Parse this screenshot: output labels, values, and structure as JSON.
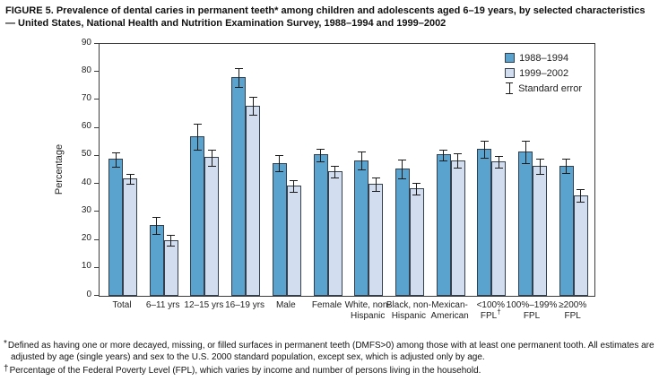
{
  "figure": {
    "title": "FIGURE 5. Prevalence of dental caries in permanent teeth* among children and adolescents aged 6–19 years, by selected characteristics — United States, National Health and Nutrition Examination Survey, 1988–1994 and 1999–2002"
  },
  "chart_data": {
    "type": "bar",
    "title": "",
    "xlabel": "",
    "ylabel": "Percentage",
    "ylim": [
      0,
      90
    ],
    "ytick_step": 10,
    "grid": false,
    "legend_position": "top-right-inside",
    "legend_error_label": "Standard error",
    "categories": [
      [
        "Total"
      ],
      [
        "6–11 yrs"
      ],
      [
        "12–15 yrs"
      ],
      [
        "16–19 yrs"
      ],
      [
        "Male"
      ],
      [
        "Female"
      ],
      [
        "White, non-",
        "Hispanic"
      ],
      [
        "Black, non-",
        "Hispanic"
      ],
      [
        "Mexican-",
        "American"
      ],
      [
        "<100%",
        "FPL†"
      ],
      [
        "100%–199%",
        "FPL"
      ],
      [
        "≥200%",
        "FPL"
      ]
    ],
    "series": [
      {
        "name": "1988–1994",
        "color": "#5BA3CF",
        "values": [
          49,
          25.3,
          57,
          78,
          47.5,
          50.5,
          48.5,
          45.5,
          50.5,
          52.5,
          51.5,
          46.5
        ],
        "stderr": [
          2.4,
          3.0,
          4.4,
          3.2,
          2.8,
          2.0,
          3.0,
          3.2,
          1.8,
          3.0,
          3.8,
          2.4
        ]
      },
      {
        "name": "1999–2002",
        "color": "#D2DEEF",
        "values": [
          42,
          20,
          49.5,
          68,
          39.5,
          44.5,
          40,
          38.5,
          48.5,
          48,
          46.5,
          36
        ],
        "stderr": [
          1.6,
          1.9,
          2.6,
          3.0,
          1.9,
          2.0,
          2.3,
          2.0,
          2.3,
          2.0,
          2.6,
          2.1
        ]
      }
    ],
    "bar_border_color": "#333F4D",
    "error_bar_color": "#1A1A1A",
    "axis_color": "#3C3C3C"
  },
  "footnotes": [
    {
      "marker": "*",
      "text": "Defined as having one or more decayed, missing, or filled surfaces in permanent teeth (DMFS>0) among those with at least one permanent tooth. All estimates are adjusted by age (single years) and sex to the U.S. 2000 standard population, except sex, which is adjusted only by age."
    },
    {
      "marker": "†",
      "text": "Percentage of the Federal Poverty Level (FPL), which varies by income and number of persons living in the household."
    }
  ]
}
